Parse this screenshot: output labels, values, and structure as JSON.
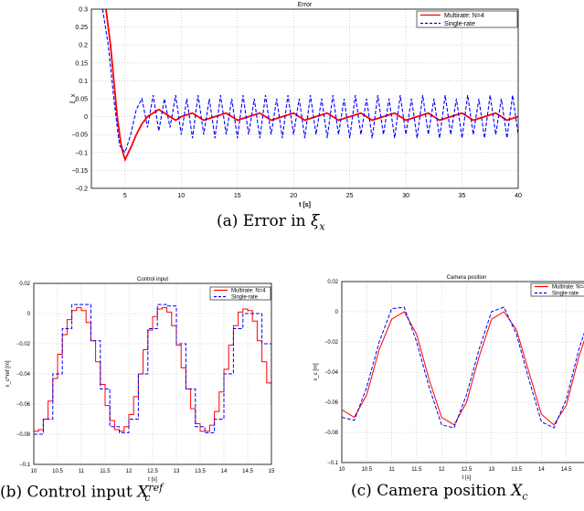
{
  "captions": {
    "a": {
      "prefix": "(a) Error in ",
      "sym": "ξ",
      "sub": "x"
    },
    "b": {
      "prefix": "(b) Control input ",
      "sym": "X",
      "sup": "ref",
      "sub": "c"
    },
    "c": {
      "prefix": "(c) Camera position ",
      "sym": "X",
      "sub": "c"
    }
  },
  "chart_data": [
    {
      "type": "line",
      "title": "Error",
      "xlabel": "t [s]",
      "ylabel": "ξ_x",
      "xlim": [
        2,
        40
      ],
      "ylim": [
        -0.2,
        0.3
      ],
      "xticks": [
        5,
        10,
        15,
        20,
        25,
        30,
        35,
        40
      ],
      "yticks": [
        -0.2,
        -0.15,
        -0.1,
        -0.05,
        0,
        0.05,
        0.1,
        0.15,
        0.2,
        0.25,
        0.3
      ],
      "grid": true,
      "legend_position": "top-right",
      "series": [
        {
          "name": "Multirate: N=4",
          "color": "#ff0000",
          "style": "solid",
          "x": [
            3.3,
            3.7,
            4.0,
            4.3,
            4.6,
            4.8,
            5.0,
            5.3,
            5.6,
            6.0,
            6.5,
            7.0,
            7.5,
            8.0,
            8.5,
            9.0,
            9.5,
            10,
            11,
            12,
            13,
            14,
            15,
            16,
            17,
            18,
            19,
            20,
            21,
            22,
            23,
            24,
            25,
            26,
            27,
            28,
            29,
            30,
            31,
            32,
            33,
            34,
            35,
            36,
            37,
            38,
            39,
            40
          ],
          "y": [
            0.3,
            0.2,
            0.1,
            0.0,
            -0.07,
            -0.1,
            -0.12,
            -0.1,
            -0.08,
            -0.05,
            -0.02,
            0.0,
            0.01,
            0.02,
            0.01,
            0.0,
            -0.01,
            0.0,
            0.01,
            -0.01,
            0.0,
            0.01,
            -0.01,
            0.0,
            0.01,
            -0.01,
            0.0,
            0.01,
            -0.01,
            0.0,
            0.01,
            -0.01,
            0.0,
            0.01,
            -0.01,
            0.0,
            0.01,
            -0.01,
            0.0,
            0.01,
            -0.01,
            0.0,
            0.01,
            -0.01,
            0.0,
            0.01,
            -0.01,
            0.0
          ]
        },
        {
          "name": "Single-rate",
          "color": "#0000ff",
          "style": "dashed",
          "x": [
            3.0,
            3.5,
            4.0,
            4.5,
            5.0,
            5.5,
            6.0,
            6.5,
            7.0,
            7.5,
            8.0,
            8.5,
            9.0,
            9.5,
            10,
            10.5,
            11,
            11.5,
            12,
            12.5,
            13,
            13.5,
            14,
            14.5,
            15,
            15.5,
            16,
            16.5,
            17,
            17.5,
            18,
            18.5,
            19,
            19.5,
            20,
            20.5,
            21,
            21.5,
            22,
            22.5,
            23,
            23.5,
            24,
            24.5,
            25,
            25.5,
            26,
            26.5,
            27,
            27.5,
            28,
            28.5,
            29,
            29.5,
            30,
            30.5,
            31,
            31.5,
            32,
            32.5,
            33,
            33.5,
            34,
            34.5,
            35,
            35.5,
            36,
            36.5,
            37,
            37.5,
            38,
            38.5,
            39,
            39.5,
            40
          ],
          "y": [
            0.3,
            0.2,
            0.05,
            -0.08,
            -0.1,
            -0.05,
            0.02,
            0.05,
            -0.03,
            0.06,
            -0.04,
            0.05,
            -0.03,
            0.06,
            -0.05,
            0.05,
            -0.06,
            0.06,
            -0.05,
            0.05,
            -0.06,
            0.06,
            -0.05,
            0.05,
            -0.06,
            0.06,
            -0.05,
            0.05,
            -0.06,
            0.06,
            -0.05,
            0.05,
            -0.06,
            0.06,
            -0.05,
            0.05,
            -0.06,
            0.06,
            -0.05,
            0.05,
            -0.06,
            0.06,
            -0.05,
            0.05,
            -0.06,
            0.06,
            -0.05,
            0.05,
            -0.06,
            0.06,
            -0.05,
            0.05,
            -0.06,
            0.06,
            -0.05,
            0.05,
            -0.06,
            0.06,
            -0.05,
            0.05,
            -0.06,
            0.06,
            -0.05,
            0.05,
            -0.06,
            0.06,
            -0.05,
            0.05,
            -0.06,
            0.06,
            -0.05,
            0.05,
            -0.06,
            0.06,
            -0.05
          ]
        }
      ]
    },
    {
      "type": "line",
      "title": "Control input",
      "xlabel": "t [s]",
      "ylabel": "x_c^ref [m]",
      "xlim": [
        10,
        15
      ],
      "ylim": [
        -0.1,
        0.02
      ],
      "xticks": [
        10,
        10.5,
        11,
        11.5,
        12,
        12.5,
        13,
        13.5,
        14,
        14.5,
        15
      ],
      "yticks": [
        -0.1,
        -0.08,
        -0.06,
        -0.04,
        -0.02,
        0,
        0.02
      ],
      "grid": true,
      "legend_position": "top-right",
      "series": [
        {
          "name": "Multirate: N=4",
          "color": "#ff0000",
          "style": "step",
          "x": [
            10,
            10.1,
            10.2,
            10.3,
            10.4,
            10.5,
            10.6,
            10.7,
            10.8,
            10.9,
            11.0,
            11.1,
            11.2,
            11.3,
            11.4,
            11.5,
            11.6,
            11.7,
            11.8,
            11.9,
            12.0,
            12.1,
            12.2,
            12.3,
            12.4,
            12.5,
            12.6,
            12.7,
            12.8,
            12.9,
            13.0,
            13.1,
            13.2,
            13.3,
            13.4,
            13.5,
            13.6,
            13.7,
            13.8,
            13.9,
            14.0,
            14.1,
            14.2,
            14.3,
            14.4,
            14.5,
            14.6,
            14.7,
            14.8,
            14.9,
            15.0
          ],
          "y": [
            -0.078,
            -0.077,
            -0.07,
            -0.058,
            -0.043,
            -0.027,
            -0.014,
            -0.004,
            0.002,
            0.004,
            0.002,
            -0.006,
            -0.018,
            -0.032,
            -0.047,
            -0.061,
            -0.071,
            -0.077,
            -0.078,
            -0.075,
            -0.067,
            -0.055,
            -0.04,
            -0.024,
            -0.011,
            -0.002,
            0.003,
            0.004,
            0.001,
            -0.008,
            -0.021,
            -0.036,
            -0.05,
            -0.063,
            -0.073,
            -0.078,
            -0.078,
            -0.074,
            -0.065,
            -0.052,
            -0.037,
            -0.021,
            -0.008,
            0.001,
            0.003,
            0.002,
            -0.005,
            -0.018,
            -0.032,
            -0.046,
            -0.06
          ]
        },
        {
          "name": "Single-rate",
          "color": "#0000ff",
          "style": "step",
          "x": [
            10,
            10.2,
            10.4,
            10.6,
            10.8,
            11.0,
            11.2,
            11.4,
            11.6,
            11.8,
            12.0,
            12.2,
            12.4,
            12.6,
            12.8,
            13.0,
            13.2,
            13.4,
            13.6,
            13.8,
            14.0,
            14.2,
            14.4,
            14.6,
            14.8,
            15.0
          ],
          "y": [
            -0.08,
            -0.07,
            -0.04,
            -0.01,
            0.006,
            0.006,
            -0.018,
            -0.05,
            -0.075,
            -0.079,
            -0.07,
            -0.04,
            -0.01,
            0.006,
            0.005,
            -0.02,
            -0.05,
            -0.075,
            -0.079,
            -0.07,
            -0.04,
            -0.01,
            0.0,
            0.0,
            -0.02,
            -0.05
          ]
        }
      ]
    },
    {
      "type": "line",
      "title": "Camera position",
      "xlabel": "t [s]",
      "ylabel": "x_c [m]",
      "xlim": [
        10,
        15
      ],
      "ylim": [
        -0.1,
        0.02
      ],
      "xticks": [
        10,
        10.5,
        11,
        11.5,
        12,
        12.5,
        13,
        13.5,
        14,
        14.5
      ],
      "yticks": [
        -0.1,
        -0.08,
        -0.06,
        -0.04,
        -0.02,
        0,
        0.02
      ],
      "grid": true,
      "legend_position": "top-right",
      "series": [
        {
          "name": "Multirate: N=4",
          "color": "#ff0000",
          "style": "solid",
          "x": [
            10,
            10.25,
            10.5,
            10.75,
            11.0,
            11.25,
            11.5,
            11.75,
            12.0,
            12.25,
            12.5,
            12.75,
            13.0,
            13.25,
            13.5,
            13.75,
            14.0,
            14.25,
            14.5,
            14.75,
            15.0
          ],
          "y": [
            -0.065,
            -0.07,
            -0.055,
            -0.025,
            -0.005,
            0.0,
            -0.015,
            -0.045,
            -0.07,
            -0.075,
            -0.06,
            -0.03,
            -0.005,
            0.0,
            -0.012,
            -0.04,
            -0.068,
            -0.075,
            -0.062,
            -0.03,
            -0.005
          ]
        },
        {
          "name": "Single-rate",
          "color": "#0000ff",
          "style": "dashed",
          "x": [
            10,
            10.25,
            10.5,
            10.75,
            11.0,
            11.25,
            11.5,
            11.75,
            12.0,
            12.25,
            12.5,
            12.75,
            13.0,
            13.25,
            13.5,
            13.75,
            14.0,
            14.25,
            14.5,
            14.75,
            15.0
          ],
          "y": [
            -0.07,
            -0.072,
            -0.05,
            -0.02,
            0.002,
            0.003,
            -0.02,
            -0.05,
            -0.075,
            -0.077,
            -0.055,
            -0.025,
            0.0,
            0.003,
            -0.015,
            -0.045,
            -0.073,
            -0.077,
            -0.058,
            -0.025,
            0.0
          ]
        }
      ]
    }
  ]
}
